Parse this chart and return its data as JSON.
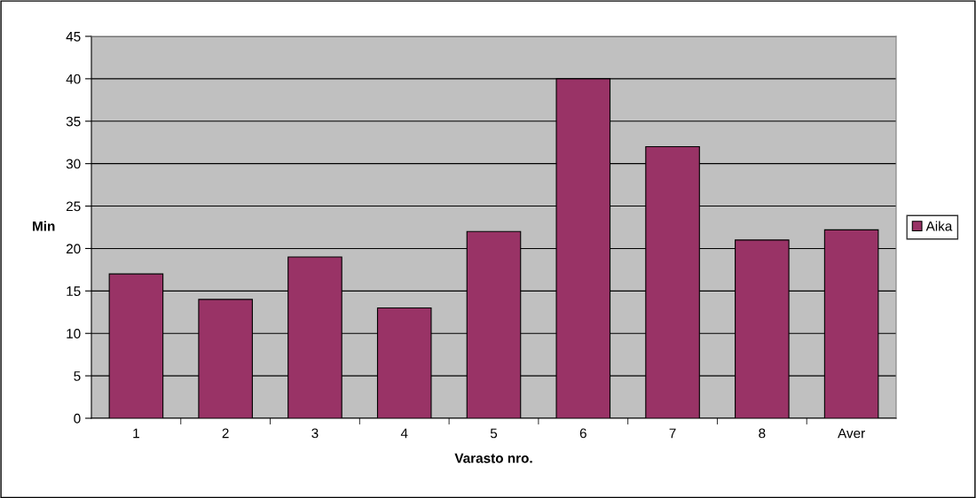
{
  "chart_data": {
    "type": "bar",
    "xlabel": "Varasto nro.",
    "ylabel": "Min",
    "categories": [
      "1",
      "2",
      "3",
      "4",
      "5",
      "6",
      "7",
      "8",
      "Aver"
    ],
    "series": [
      {
        "name": "Aika",
        "color": "#993366",
        "values": [
          17,
          14,
          19,
          13,
          22,
          40,
          32,
          21,
          22.2
        ]
      }
    ],
    "ylim": [
      0,
      45
    ],
    "yticks": [
      0,
      5,
      10,
      15,
      20,
      25,
      30,
      35,
      40,
      45
    ],
    "grid": "y",
    "legend": "right"
  }
}
